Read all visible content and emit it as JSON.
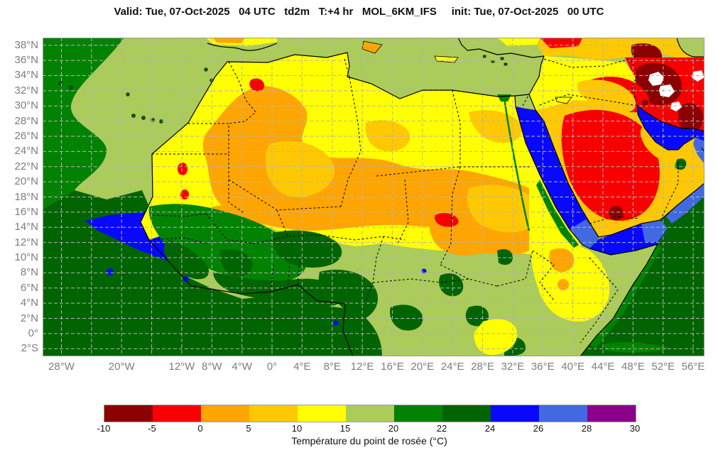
{
  "title": "Valid: Tue, 07-Oct-2025   04 UTC   td2m   T:+4 hr   MOL_6KM_IFS     init: Tue, 07-Oct-2025   00 UTC",
  "map": {
    "grid": {
      "lon_min": -30.5,
      "lon_max": 57.5,
      "lat_min": -3,
      "lat_max": 39,
      "lon_step": 4,
      "lat_step": 2,
      "lon_line_min": -28,
      "lon_line_max": 56,
      "lat_line_max": 38
    },
    "lat_ticks": [
      {
        "label": "38°N",
        "deg": 38
      },
      {
        "label": "36°N",
        "deg": 36
      },
      {
        "label": "34°N",
        "deg": 34
      },
      {
        "label": "32°N",
        "deg": 32
      },
      {
        "label": "30°N",
        "deg": 30
      },
      {
        "label": "28°N",
        "deg": 28
      },
      {
        "label": "26°N",
        "deg": 26
      },
      {
        "label": "24°N",
        "deg": 24
      },
      {
        "label": "22°N",
        "deg": 22
      },
      {
        "label": "20°N",
        "deg": 20
      },
      {
        "label": "18°N",
        "deg": 18
      },
      {
        "label": "16°N",
        "deg": 16
      },
      {
        "label": "14°N",
        "deg": 14
      },
      {
        "label": "12°N",
        "deg": 12
      },
      {
        "label": "10°N",
        "deg": 10
      },
      {
        "label": "8°N",
        "deg": 8
      },
      {
        "label": "6°N",
        "deg": 6
      },
      {
        "label": "4°N",
        "deg": 4
      },
      {
        "label": "2°N",
        "deg": 2
      },
      {
        "label": "0°",
        "deg": 0
      },
      {
        "label": "2°S",
        "deg": -2
      }
    ],
    "lon_ticks": [
      {
        "label": "28°W",
        "deg": -28
      },
      {
        "label": "20°W",
        "deg": -20
      },
      {
        "label": "12°W",
        "deg": -12
      },
      {
        "label": "8°W",
        "deg": -8
      },
      {
        "label": "4°W",
        "deg": -4
      },
      {
        "label": "0°",
        "deg": 0
      },
      {
        "label": "4°E",
        "deg": 4
      },
      {
        "label": "8°E",
        "deg": 8
      },
      {
        "label": "12°E",
        "deg": 12
      },
      {
        "label": "16°E",
        "deg": 16
      },
      {
        "label": "20°E",
        "deg": 20
      },
      {
        "label": "24°E",
        "deg": 24
      },
      {
        "label": "28°E",
        "deg": 28
      },
      {
        "label": "32°E",
        "deg": 32
      },
      {
        "label": "36°E",
        "deg": 36
      },
      {
        "label": "40°E",
        "deg": 40
      },
      {
        "label": "44°E",
        "deg": 44
      },
      {
        "label": "48°E",
        "deg": 48
      },
      {
        "label": "52°E",
        "deg": 52
      },
      {
        "label": "56°E",
        "deg": 56
      }
    ]
  },
  "colorbar": {
    "caption": "Température du point de rosée (°C)",
    "ticks": [
      "-10",
      "-5",
      "0",
      "5",
      "10",
      "15",
      "20",
      "22",
      "24",
      "26",
      "28",
      "30"
    ],
    "segments": [
      {
        "range": "-10 to -5",
        "color": "#8b0000"
      },
      {
        "range": "-5 to 0",
        "color": "#f80000"
      },
      {
        "range": "0 to 5",
        "color": "#ffa500"
      },
      {
        "range": "5 to 10",
        "color": "#ffc800"
      },
      {
        "range": "10 to 15",
        "color": "#ffff00"
      },
      {
        "range": "15 to 20",
        "color": "#abcb5a"
      },
      {
        "range": "20 to 22",
        "color": "#028202"
      },
      {
        "range": "22 to 24",
        "color": "#006400"
      },
      {
        "range": "24 to 26",
        "color": "#0808ff"
      },
      {
        "range": "26 to 28",
        "color": "#4169e1"
      },
      {
        "range": "28 to 30",
        "color": "#8b008b"
      }
    ]
  }
}
